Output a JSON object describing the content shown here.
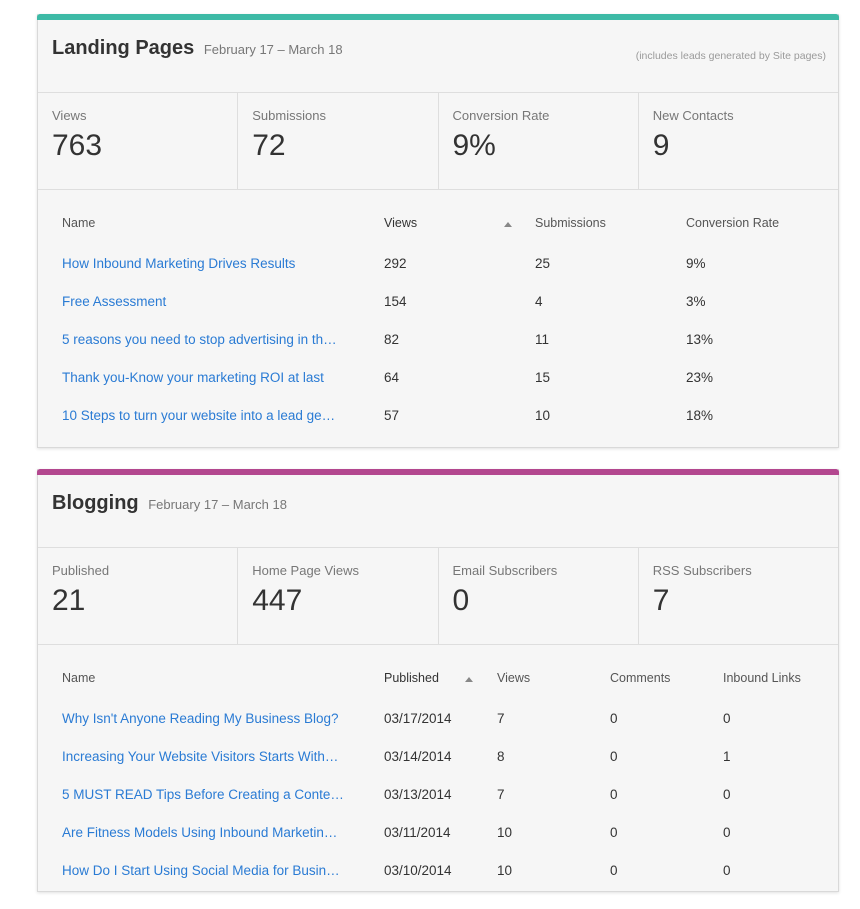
{
  "landing": {
    "title": "Landing Pages",
    "date_range": "February 17 – March 18",
    "note": "(includes leads generated by Site pages)",
    "accent_color": "#3dbaa6",
    "stats": [
      {
        "label": "Views",
        "value": "763"
      },
      {
        "label": "Submissions",
        "value": "72"
      },
      {
        "label": "Conversion Rate",
        "value": "9%"
      },
      {
        "label": "New Contacts",
        "value": "9"
      }
    ],
    "columns": [
      "Name",
      "Views",
      "Submissions",
      "Conversion Rate"
    ],
    "rows": [
      {
        "name": "How Inbound Marketing Drives Results",
        "views": "292",
        "submissions": "25",
        "rate": "9%"
      },
      {
        "name": "Free Assessment",
        "views": "154",
        "submissions": "4",
        "rate": "3%"
      },
      {
        "name": "5 reasons you need to stop advertising in th…",
        "views": "82",
        "submissions": "11",
        "rate": "13%"
      },
      {
        "name": "Thank you-Know your marketing ROI at last",
        "views": "64",
        "submissions": "15",
        "rate": "23%"
      },
      {
        "name": "10 Steps to turn your website into a lead ge…",
        "views": "57",
        "submissions": "10",
        "rate": "18%"
      }
    ]
  },
  "blogging": {
    "title": "Blogging",
    "date_range": "February 17 – March 18",
    "accent_color": "#b3478f",
    "stats": [
      {
        "label": "Published",
        "value": "21"
      },
      {
        "label": "Home Page Views",
        "value": "447"
      },
      {
        "label": "Email Subscribers",
        "value": "0"
      },
      {
        "label": "RSS Subscribers",
        "value": "7"
      }
    ],
    "columns": [
      "Name",
      "Published",
      "Views",
      "Comments",
      "Inbound Links"
    ],
    "rows": [
      {
        "name": "Why Isn't Anyone Reading My Business Blog?",
        "published": "03/17/2014",
        "views": "7",
        "comments": "0",
        "links": "0"
      },
      {
        "name": "Increasing Your Website Visitors Starts With…",
        "published": "03/14/2014",
        "views": "8",
        "comments": "0",
        "links": "1"
      },
      {
        "name": "5 MUST READ Tips Before Creating a Conte…",
        "published": "03/13/2014",
        "views": "7",
        "comments": "0",
        "links": "0"
      },
      {
        "name": "Are Fitness Models Using Inbound Marketin…",
        "published": "03/11/2014",
        "views": "10",
        "comments": "0",
        "links": "0"
      },
      {
        "name": "How Do I Start Using Social Media for Busin…",
        "published": "03/10/2014",
        "views": "10",
        "comments": "0",
        "links": "0"
      }
    ]
  }
}
